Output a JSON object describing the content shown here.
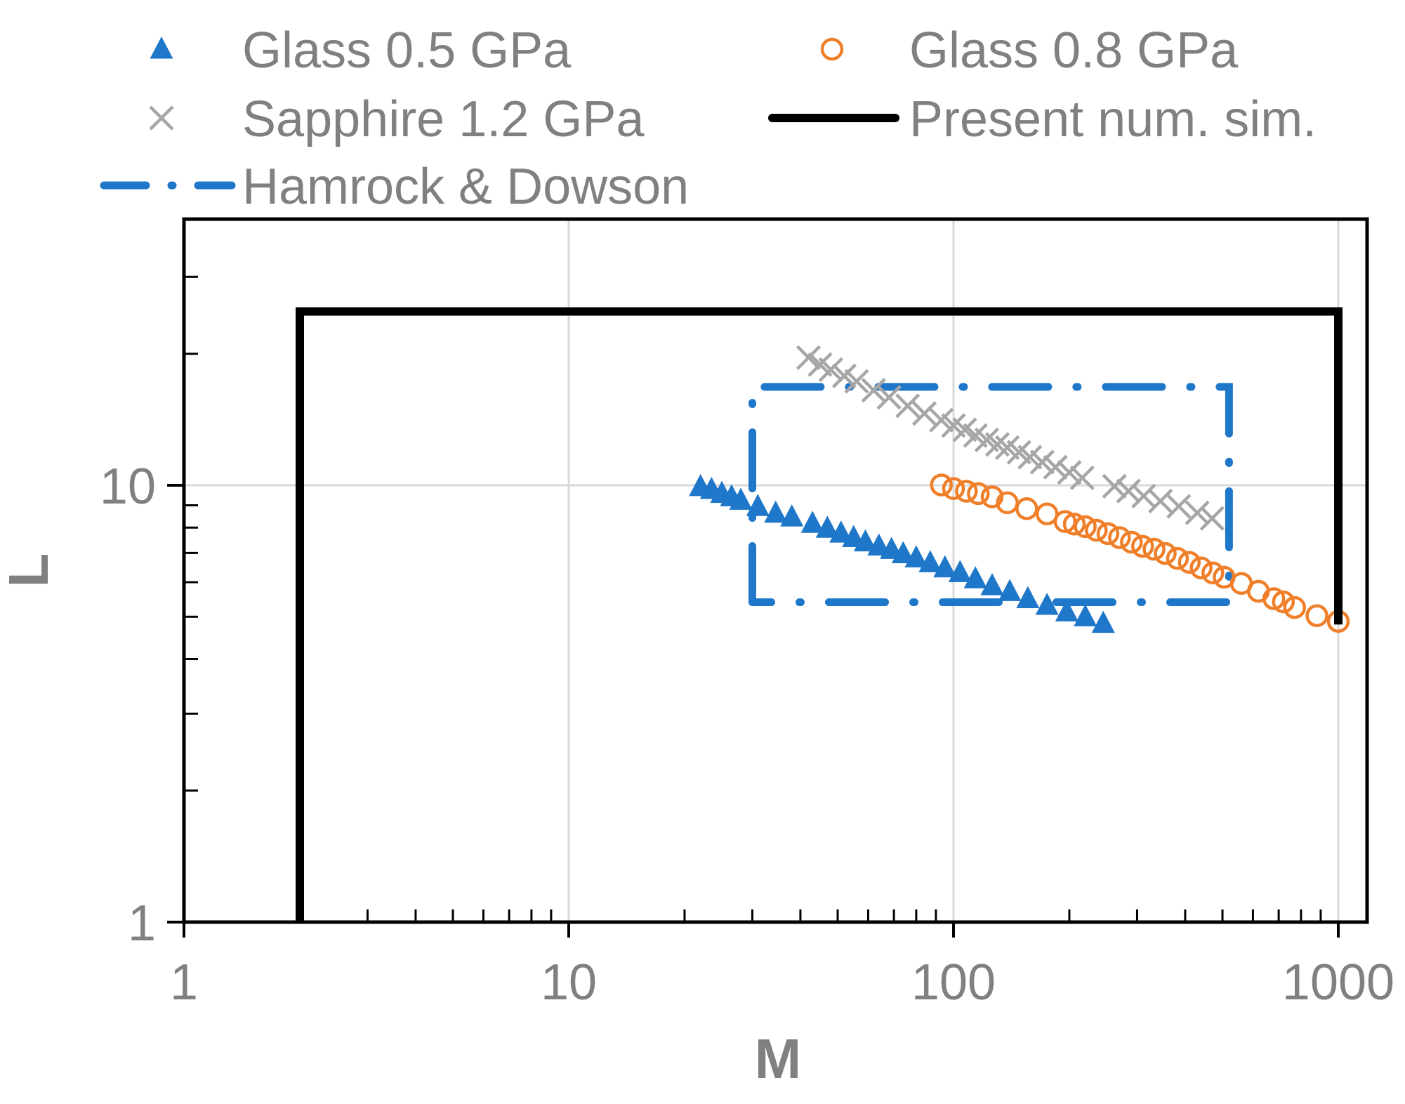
{
  "chart_data": {
    "type": "scatter",
    "title": "",
    "xlabel": "M",
    "ylabel": "L",
    "xscale": "log",
    "yscale": "log",
    "xlim": [
      1,
      1000
    ],
    "ylim": [
      1,
      30
    ],
    "grid": true,
    "legend_position": "top",
    "x_ticks": [
      "1",
      "10",
      "100",
      "1000"
    ],
    "y_ticks": [
      "1",
      "10"
    ],
    "colors": {
      "glass05": "#1F77C9",
      "glass08": "#F07F2A",
      "sapphire": "#A6A6A6",
      "present": "#000000",
      "hamrock": "#1F77C9",
      "text": "#808080",
      "grid": "#D9D9D9"
    },
    "series": [
      {
        "name": "Glass 0.5 GPa",
        "marker": "triangle",
        "points": [
          [
            22,
            9.93
          ],
          [
            23.5,
            9.78
          ],
          [
            25,
            9.58
          ],
          [
            26.5,
            9.41
          ],
          [
            28,
            9.24
          ],
          [
            31,
            8.94
          ],
          [
            34.5,
            8.63
          ],
          [
            38,
            8.46
          ],
          [
            43,
            8.18
          ],
          [
            47,
            7.97
          ],
          [
            51,
            7.77
          ],
          [
            55,
            7.59
          ],
          [
            59,
            7.42
          ],
          [
            64,
            7.26
          ],
          [
            69,
            7.13
          ],
          [
            74,
            6.97
          ],
          [
            80,
            6.82
          ],
          [
            87,
            6.65
          ],
          [
            95,
            6.47
          ],
          [
            104,
            6.31
          ],
          [
            114,
            6.11
          ],
          [
            126,
            5.89
          ],
          [
            140,
            5.71
          ],
          [
            156,
            5.5
          ],
          [
            175,
            5.31
          ],
          [
            197,
            5.13
          ],
          [
            220,
            5.0
          ],
          [
            245,
            4.83
          ]
        ]
      },
      {
        "name": "Glass 0.8 GPa",
        "marker": "circle-open",
        "points": [
          [
            93,
            10.02
          ],
          [
            100,
            9.83
          ],
          [
            108,
            9.69
          ],
          [
            116,
            9.57
          ],
          [
            126,
            9.41
          ],
          [
            138,
            9.12
          ],
          [
            155,
            8.84
          ],
          [
            175,
            8.6
          ],
          [
            195,
            8.26
          ],
          [
            206,
            8.15
          ],
          [
            220,
            8.04
          ],
          [
            235,
            7.89
          ],
          [
            252,
            7.75
          ],
          [
            270,
            7.59
          ],
          [
            290,
            7.41
          ],
          [
            310,
            7.25
          ],
          [
            332,
            7.14
          ],
          [
            355,
            6.98
          ],
          [
            382,
            6.8
          ],
          [
            410,
            6.66
          ],
          [
            440,
            6.47
          ],
          [
            472,
            6.3
          ],
          [
            505,
            6.16
          ],
          [
            560,
            5.96
          ],
          [
            620,
            5.72
          ],
          [
            680,
            5.5
          ],
          [
            720,
            5.41
          ],
          [
            770,
            5.25
          ],
          [
            880,
            5.03
          ],
          [
            1000,
            4.88
          ]
        ]
      },
      {
        "name": "Sapphire 1.2 GPa",
        "marker": "x",
        "points": [
          [
            42,
            19.6
          ],
          [
            45,
            18.9
          ],
          [
            48,
            18.4
          ],
          [
            52,
            17.8
          ],
          [
            56,
            17.3
          ],
          [
            62,
            16.5
          ],
          [
            68,
            15.9
          ],
          [
            76,
            15.2
          ],
          [
            84,
            14.6
          ],
          [
            93,
            14.1
          ],
          [
            100,
            13.7
          ],
          [
            107,
            13.4
          ],
          [
            114,
            13.0
          ],
          [
            122,
            12.7
          ],
          [
            130,
            12.4
          ],
          [
            138,
            12.2
          ],
          [
            148,
            11.9
          ],
          [
            158,
            11.6
          ],
          [
            170,
            11.3
          ],
          [
            184,
            11.0
          ],
          [
            200,
            10.7
          ],
          [
            216,
            10.4
          ],
          [
            262,
            9.95
          ],
          [
            285,
            9.7
          ],
          [
            312,
            9.45
          ],
          [
            345,
            9.2
          ],
          [
            385,
            8.95
          ],
          [
            430,
            8.65
          ],
          [
            470,
            8.4
          ]
        ]
      },
      {
        "name": "Present num. sim.",
        "style": "solid-thick",
        "points": [
          [
            2,
            1
          ],
          [
            2,
            25
          ],
          [
            1000,
            25
          ],
          [
            1000,
            4.8
          ]
        ]
      },
      {
        "name": "Hamrock & Dowson",
        "style": "dash-dot",
        "points": [
          [
            30,
            5.4
          ],
          [
            30,
            16.8
          ],
          [
            520,
            16.8
          ],
          [
            520,
            5.4
          ],
          [
            30,
            5.4
          ]
        ]
      }
    ]
  }
}
